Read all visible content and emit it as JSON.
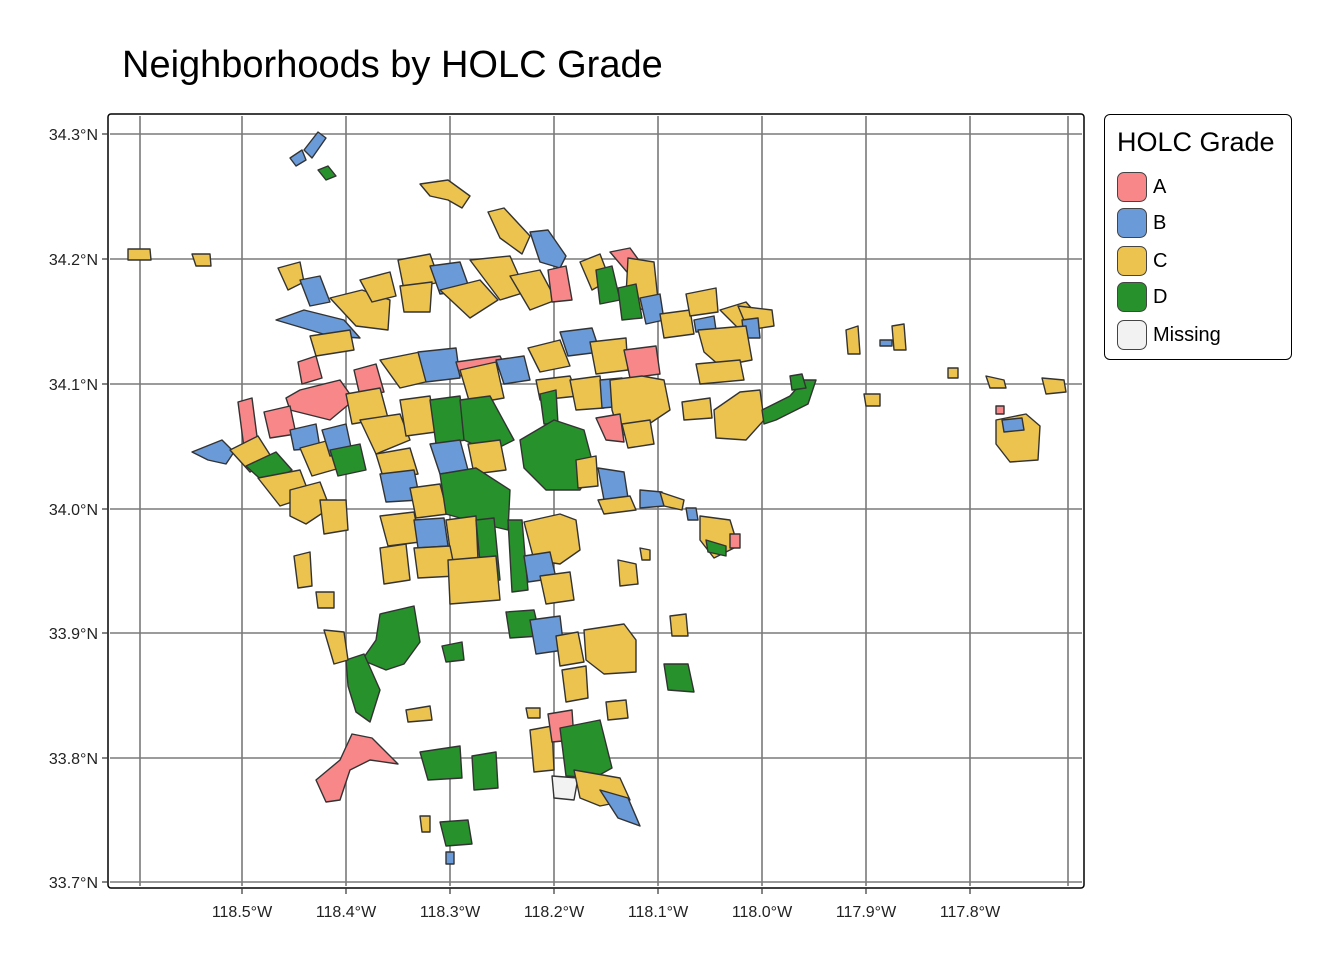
{
  "title": "Neighborhoods by HOLC Grade",
  "legend": {
    "title": "HOLC Grade",
    "items": [
      {
        "label": "A",
        "color": "#f8878a"
      },
      {
        "label": "B",
        "color": "#6a9bd8"
      },
      {
        "label": "C",
        "color": "#ecc34e"
      },
      {
        "label": "D",
        "color": "#27922b"
      },
      {
        "label": "Missing",
        "color": "#f2f2f2"
      }
    ]
  },
  "map": {
    "x_ticks": [
      "118.5°W",
      "118.4°W",
      "118.3°W",
      "118.2°W",
      "118.1°W",
      "118.0°W",
      "117.9°W",
      "117.8°W"
    ],
    "y_ticks": [
      "34.3°N",
      "34.2°N",
      "34.1°N",
      "34.0°N",
      "33.9°N",
      "33.8°N",
      "33.7°N"
    ],
    "lon_range": [
      -118.6,
      -117.7
    ],
    "lat_range": [
      33.7,
      34.3
    ],
    "grid": true,
    "stroke_color": "#333333",
    "gridline_color": "#7a7a7a"
  }
}
